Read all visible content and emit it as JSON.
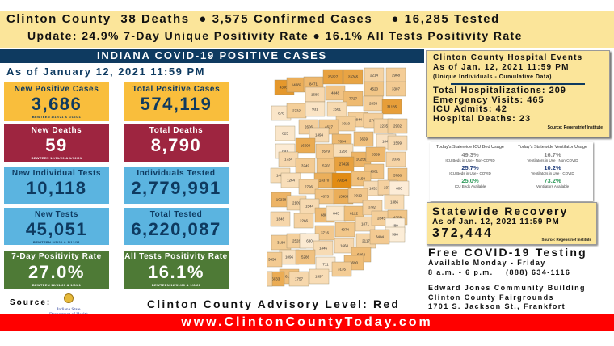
{
  "banner": {
    "line1": "Clinton County  38 Deaths  ● 3,575 Confirmed Cases    ● 16,285 Tested",
    "line2": "Update: 24.9% 7-Day Unique Positivity Rate ● 16.1% All Tests Positivity Rate"
  },
  "header": {
    "title": "INDIANA COVID-19 POSITIVE CASES",
    "as_of": "As of January 12, 2021 11:59 PM"
  },
  "tiles": [
    {
      "title": "New Positive Cases",
      "value": "3,686",
      "sub": "BEWTEEN 1/12/21 & 1/12/21",
      "color": "#F9BE3C"
    },
    {
      "title": "Total Positive Cases",
      "value": "574,119",
      "sub": "",
      "color": "#F9BE3C"
    },
    {
      "title": "New Deaths",
      "value": "59",
      "sub": "BEWTEEN 12/11/20 & 1/12/21",
      "color": "#9E2540"
    },
    {
      "title": "Total Deaths",
      "value": "8,790",
      "sub": "",
      "color": "#9E2540"
    },
    {
      "title": "New Individual Tests",
      "value": "10,118",
      "sub": "",
      "color": "#5BB4E0"
    },
    {
      "title": "Individuals Tested",
      "value": "2,779,991",
      "sub": "",
      "color": "#5BB4E0"
    },
    {
      "title": "New Tests",
      "value": "45,051",
      "sub": "BEWTEEN 3/5/20 & 1/12/21",
      "color": "#5BB4E0"
    },
    {
      "title": "Total Tested",
      "value": "6,220,087",
      "sub": "",
      "color": "#5BB4E0"
    },
    {
      "title": "7-Day Positivity Rate",
      "value": "27.0%",
      "sub": "BEWTEEN 12/31/20 & 1/6/21",
      "color": "#4E7A36"
    },
    {
      "title": "All Tests Positivity Rate",
      "value": "16.1%",
      "sub": "BEWTEEN 12/31/20 & 1/6/21",
      "color": "#4E7A36"
    }
  ],
  "map": {
    "counties": [
      43065,
      14082,
      8471,
      26227,
      23765,
      2214,
      2968,
      1685,
      4848,
      7727,
      4520,
      3307,
      2835,
      31185,
      876,
      2732,
      931,
      1561,
      2844,
      2760,
      3010,
      2606,
      4627,
      2235,
      2902,
      825,
      1494,
      7634,
      5659,
      1046,
      1599,
      16690,
      641,
      3579,
      1256,
      10256,
      8559,
      2036,
      1734,
      3249,
      5203,
      27426,
      4801,
      5768,
      1407,
      1264,
      13370,
      79354,
      6150,
      2796,
      1432,
      2375,
      600,
      10238,
      4873,
      13989,
      3912,
      2109,
      1544,
      1386,
      6881,
      843,
      6122,
      2350,
      1846,
      2266,
      1871,
      2845,
      4389,
      489,
      3716,
      4074,
      596,
      3180,
      2528,
      680,
      2117,
      3404,
      1446,
      1668,
      1096,
      5286,
      6864,
      6690,
      711,
      3135,
      6165,
      1757,
      1397,
      16033,
      3454,
      2238
    ]
  },
  "hospital": {
    "title": "Clinton County Hospital Events",
    "as_of": "As of Jan. 12, 2021 11:59 PM",
    "note": "(Unique Individuals - Cumulative Data)",
    "stats": [
      "Total Hospitalizations: 209",
      "Emergency Visits: 465",
      "ICU Admits: 42",
      "Hospital Deaths: 23"
    ],
    "source": "Source: Regenstrief Institute"
  },
  "icu": {
    "title": "Today's Statewide ICU Bed Usage",
    "items": [
      {
        "pct": "49.3%",
        "label": "ICU Beds in Use - Non-COVID",
        "color": "#888888"
      },
      {
        "pct": "25.7%",
        "label": "ICU Beds in Use - COVID",
        "color": "#1F3C7A"
      },
      {
        "pct": "25.0%",
        "label": "ICU Beds Available",
        "color": "#2E9A5A"
      }
    ]
  },
  "vent": {
    "title": "Today's Statewide Ventilator Usage",
    "items": [
      {
        "pct": "16.7%",
        "label": "Ventilators in Use - Non-COVID",
        "color": "#888888"
      },
      {
        "pct": "10.2%",
        "label": "Ventilators in Use - COVID",
        "color": "#1F3C7A"
      },
      {
        "pct": "73.2%",
        "label": "Ventilators Available",
        "color": "#2E9A5A"
      }
    ]
  },
  "recovery": {
    "title": "Statewide Recovery",
    "as_of": "As of Jan. 12, 2021 11:59 PM",
    "value": "372,444",
    "source": "Source: Regenstrief Institute"
  },
  "testing": {
    "title": "Free COVID-19 Testing",
    "days": "Available Monday - Friday",
    "hours": "8 a.m. - 6 p.m.    (888) 634-1116",
    "loc1": "Edward Jones Community Building",
    "loc2": "Clinton County Fairgrounds",
    "loc3": "1701 S. Jackson St., Frankfort"
  },
  "footer": {
    "source_label": "Source:",
    "logo_text": "Indiana State Department of Health",
    "advisory": "Clinton County Advisory Level: Red",
    "url": "www.ClintonCountyToday.com"
  }
}
